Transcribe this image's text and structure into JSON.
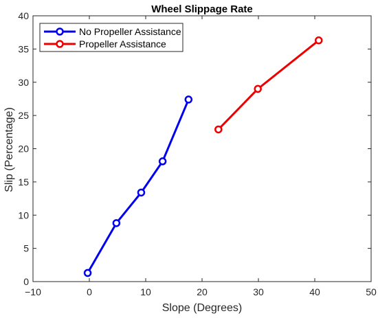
{
  "chart_data": {
    "type": "line",
    "title": "Wheel Slippage Rate",
    "xlabel": "Slope (Degrees)",
    "ylabel": "Slip (Percentage)",
    "xlim": [
      -10,
      50
    ],
    "ylim": [
      0,
      40
    ],
    "xticks": [
      -10,
      0,
      10,
      20,
      30,
      40,
      50
    ],
    "yticks": [
      0,
      5,
      10,
      15,
      20,
      25,
      30,
      35,
      40
    ],
    "xtick_labels": [
      "−10",
      "0",
      "10",
      "20",
      "30",
      "40",
      "50"
    ],
    "ytick_labels": [
      "0",
      "5",
      "10",
      "15",
      "20",
      "25",
      "30",
      "35",
      "40"
    ],
    "grid": false,
    "legend_position": "top-left",
    "series": [
      {
        "name": "No Propeller Assistance",
        "color": "#0000ee",
        "marker": "circle-open",
        "x": [
          -0.3,
          4.8,
          9.2,
          13.0,
          17.6
        ],
        "y": [
          1.3,
          8.8,
          13.4,
          18.1,
          27.4
        ]
      },
      {
        "name": "Propeller Assistance",
        "color": "#ee0000",
        "marker": "circle-open",
        "x": [
          22.9,
          29.9,
          40.7
        ],
        "y": [
          22.9,
          29.0,
          36.3
        ]
      }
    ]
  }
}
